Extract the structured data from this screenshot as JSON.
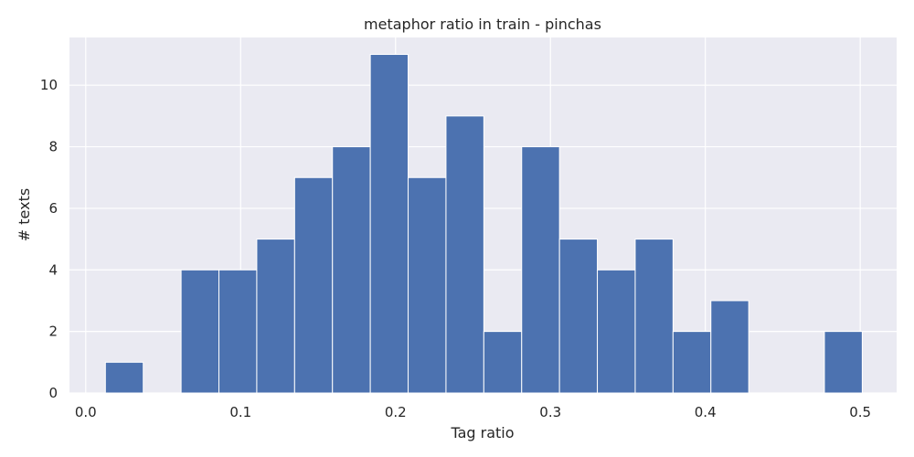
{
  "chart_data": {
    "type": "bar",
    "title": "metaphor ratio in train - pinchas",
    "xlabel": "Tag ratio",
    "ylabel": "# texts",
    "xlim": [
      -0.0105,
      0.5235
    ],
    "ylim": [
      0,
      11.55
    ],
    "xticks": [
      0.0,
      0.1,
      0.2,
      0.3,
      0.4,
      0.5
    ],
    "xtick_labels": [
      "0.0",
      "0.1",
      "0.2",
      "0.3",
      "0.4",
      "0.5"
    ],
    "yticks": [
      0,
      2,
      4,
      6,
      8,
      10
    ],
    "ytick_labels": [
      "0",
      "2",
      "4",
      "6",
      "8",
      "10"
    ],
    "bin_start": 0.0127,
    "bin_width": 0.02443,
    "counts": [
      1,
      0,
      4,
      4,
      5,
      7,
      8,
      11,
      7,
      9,
      2,
      8,
      5,
      4,
      5,
      2,
      3,
      0,
      0,
      2
    ],
    "grid": true,
    "bar_color": "#4c72b0",
    "background_color": "#eaeaf2"
  }
}
